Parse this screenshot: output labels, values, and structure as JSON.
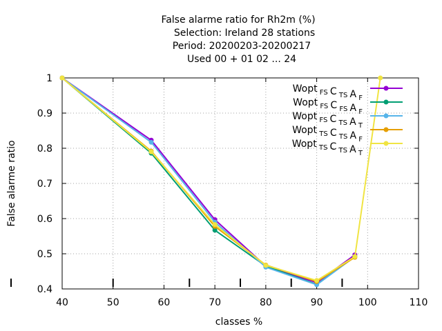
{
  "chart_data": {
    "type": "line",
    "title_lines": [
      "False alarme ratio  for Rh2m (%)",
      "Selection: Ireland     28 stations",
      "Period: 20200203-20200217",
      "Used  00 + 01 02 ... 24"
    ],
    "xlabel": "classes %",
    "ylabel": "False alarme ratio",
    "xlim": [
      40,
      110
    ],
    "ylim": [
      0.4,
      1.0
    ],
    "x_ticks": [
      40,
      50,
      60,
      70,
      80,
      90,
      100,
      110
    ],
    "y_ticks": [
      0.4,
      0.5,
      0.6,
      0.7,
      0.8,
      0.9,
      1.0
    ],
    "y_tick_labels": [
      "0.4",
      "0.5",
      "0.6",
      "0.7",
      "0.8",
      "0.9",
      "1"
    ],
    "grid": true,
    "legend_position": "top-right",
    "class_markers_x": [
      50,
      65,
      75,
      85,
      95
    ],
    "series": [
      {
        "legend": [
          [
            "Wopt",
            ""
          ],
          [
            "",
            "FS"
          ],
          [
            "C",
            ""
          ],
          [
            "",
            "TS"
          ],
          [
            "A",
            ""
          ],
          [
            "",
            "F"
          ]
        ],
        "color": "#9400d3",
        "x": [
          40,
          57.5,
          70,
          80,
          90,
          97.5
        ],
        "y": [
          1.0,
          0.823,
          0.597,
          0.465,
          0.418,
          0.497
        ]
      },
      {
        "legend": [
          [
            "Wopt",
            ""
          ],
          [
            "",
            "FS"
          ],
          [
            "C",
            ""
          ],
          [
            "",
            "FS"
          ],
          [
            "A",
            ""
          ],
          [
            "",
            "F"
          ]
        ],
        "color": "#009e73",
        "x": [
          40,
          57.5,
          70,
          80,
          90,
          97.5
        ],
        "y": [
          1.0,
          0.786,
          0.567,
          0.465,
          0.413,
          0.492
        ]
      },
      {
        "legend": [
          [
            "Wopt",
            ""
          ],
          [
            "",
            "FS"
          ],
          [
            "C",
            ""
          ],
          [
            "",
            "TS"
          ],
          [
            "A",
            ""
          ],
          [
            "",
            "T"
          ]
        ],
        "color": "#56b4e9",
        "x": [
          40,
          57.5,
          70,
          80,
          90,
          97.5
        ],
        "y": [
          1.0,
          0.817,
          0.59,
          0.462,
          0.412,
          0.492
        ]
      },
      {
        "legend": [
          [
            "Wopt",
            ""
          ],
          [
            "",
            "TS"
          ],
          [
            "C",
            ""
          ],
          [
            "",
            "TS"
          ],
          [
            "A",
            ""
          ],
          [
            "",
            "F"
          ]
        ],
        "color": "#e69f00",
        "x": [
          40,
          57.5,
          70,
          80,
          90,
          97.5
        ],
        "y": [
          1.0,
          0.792,
          0.578,
          0.468,
          0.421,
          0.49
        ]
      },
      {
        "legend": [
          [
            "Wopt",
            ""
          ],
          [
            "",
            "TS"
          ],
          [
            "C",
            ""
          ],
          [
            "",
            "TS"
          ],
          [
            "A",
            ""
          ],
          [
            "",
            "T"
          ]
        ],
        "color": "#f0e442",
        "x": [
          40,
          57.5,
          70,
          80,
          90,
          97.5,
          102.5
        ],
        "y": [
          1.0,
          0.79,
          0.583,
          0.467,
          0.424,
          0.492,
          1.0
        ]
      }
    ]
  }
}
